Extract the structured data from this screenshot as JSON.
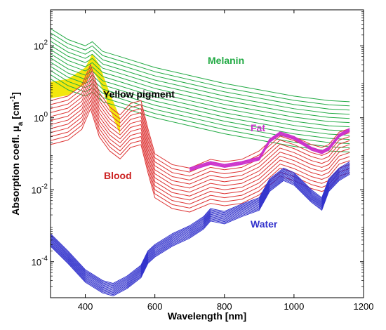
{
  "chart_data": {
    "type": "line",
    "xlabel": "Wavelength [nm]",
    "ylabel_prefix": "Absorption coefl. μ",
    "ylabel_sub": "a",
    "ylabel_unit_open": " [cm",
    "ylabel_unit_sup": "-1",
    "ylabel_unit_close": "]",
    "xlim": [
      300,
      1200
    ],
    "ylim": [
      1e-05,
      1000
    ],
    "yscale": "log",
    "grid": false,
    "xticks": [
      400,
      600,
      800,
      1000,
      1200
    ],
    "xtick_labels": [
      "400",
      "600",
      "800",
      "1000",
      "1200"
    ],
    "yticks": [
      0.0001,
      0.01,
      1,
      100
    ],
    "ytick_labels": [
      {
        "base": "10",
        "exp": "-4"
      },
      {
        "base": "10",
        "exp": "-2"
      },
      {
        "base": "10",
        "exp": "0"
      },
      {
        "base": "10",
        "exp": "2"
      }
    ],
    "annotations": {
      "melanin": "Melanin",
      "yellow": "Yellow pigment",
      "fat": "Fat",
      "blood": "Blood",
      "water": "Water"
    },
    "colors": {
      "melanin": "#22aa44",
      "blood": "#dd3333",
      "water": "#3333cc",
      "fat": "#cc33cc",
      "yellow": "#f2e600",
      "text_melanin": "#22aa44",
      "text_blood": "#cc2222",
      "text_water": "#3333cc",
      "text_fat": "#cc33cc",
      "text_yellow": "#000000"
    },
    "series": [
      {
        "group": "melanin",
        "x": [
          300,
          350,
          400,
          420,
          450,
          500,
          600,
          700,
          800,
          900,
          1000,
          1100,
          1160
        ],
        "y": [
          300,
          150,
          100,
          130,
          70,
          50,
          25,
          15,
          9,
          6,
          4,
          3,
          2.8
        ]
      },
      {
        "group": "blood",
        "x": [
          300,
          350,
          390,
          415,
          440,
          470,
          500,
          530,
          560,
          580,
          600,
          650,
          700,
          760,
          800,
          850,
          900,
          960,
          1000,
          1050,
          1080,
          1100,
          1130,
          1160
        ],
        "y": [
          3,
          4,
          8,
          30,
          5,
          2,
          1.2,
          2.5,
          3,
          0.5,
          0.1,
          0.05,
          0.04,
          0.07,
          0.06,
          0.07,
          0.12,
          0.4,
          0.3,
          0.18,
          0.15,
          0.18,
          0.4,
          0.5
        ]
      },
      {
        "group": "yellow",
        "x": [
          300,
          350,
          400,
          420,
          440,
          470,
          500
        ],
        "y": [
          10,
          12,
          25,
          60,
          30,
          5,
          1
        ]
      },
      {
        "group": "fat",
        "x": [
          700,
          760,
          800,
          850,
          900,
          930,
          960,
          1000,
          1050,
          1080,
          1100,
          1130,
          1160
        ],
        "y": [
          0.04,
          0.06,
          0.05,
          0.06,
          0.08,
          0.25,
          0.4,
          0.3,
          0.15,
          0.12,
          0.15,
          0.35,
          0.5
        ]
      },
      {
        "group": "water",
        "x": [
          300,
          350,
          400,
          450,
          480,
          520,
          560,
          580,
          600,
          650,
          700,
          740,
          760,
          800,
          850,
          900,
          930,
          970,
          1000,
          1050,
          1080,
          1100,
          1130,
          1160
        ],
        "y": [
          0.0006,
          0.0002,
          6e-05,
          3e-05,
          2.5e-05,
          4e-05,
          8e-05,
          0.0002,
          0.0003,
          0.0006,
          0.001,
          0.0018,
          0.003,
          0.0025,
          0.004,
          0.006,
          0.02,
          0.04,
          0.03,
          0.01,
          0.006,
          0.02,
          0.04,
          0.06
        ]
      }
    ]
  }
}
